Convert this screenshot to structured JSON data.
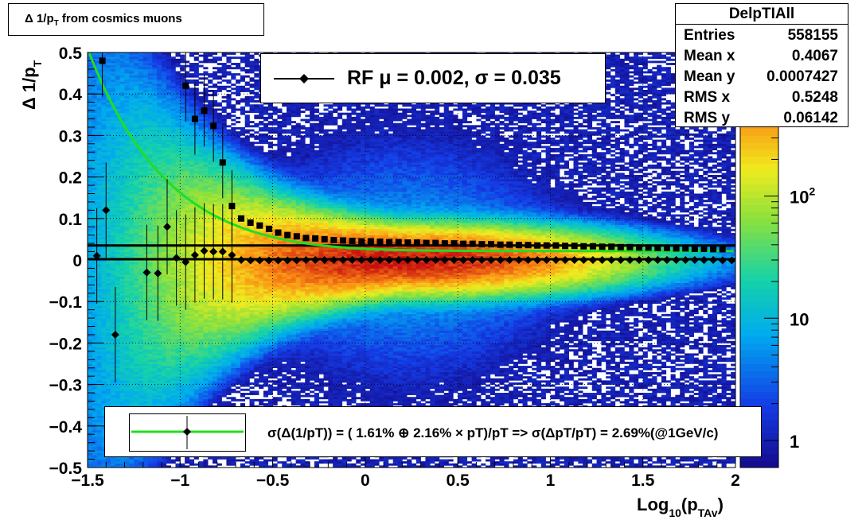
{
  "title": "Δ 1/p",
  "title_sub": "T",
  "title_rest": " from cosmics muons",
  "stats": {
    "name": "DelpTIAll",
    "rows": [
      {
        "label": "Entries",
        "value": "558155"
      },
      {
        "label": "Mean x",
        "value": "0.4067"
      },
      {
        "label": "Mean y",
        "value": "0.0007427"
      },
      {
        "label": "RMS x",
        "value": "0.5248"
      },
      {
        "label": "RMS y",
        "value": "0.06142"
      }
    ]
  },
  "legend_top": "RF μ =  0.002, σ =   0.035",
  "legend_bottom": "σ(Δ(1/pT)) = ( 1.61% ⊕  2.16% × pT)/pT => σ(ΔpT/pT) =  2.69%(@1GeV/c)",
  "colors": {
    "fit_curve": "#22dd22",
    "markers": "#000000",
    "palette_low": "#1a0f90",
    "palette_high": "#c80f0f"
  },
  "chart_data": {
    "type": "heatmap",
    "xlabel": "Log",
    "xlabel_sub": "10",
    "xlabel_rest": "(p",
    "xlabel_sub2": "TAv",
    "xlabel_end": ")",
    "ylabel": "Δ 1/p",
    "ylabel_sub": "T",
    "xlim": [
      -1.5,
      2.0
    ],
    "ylim": [
      -0.5,
      0.5
    ],
    "x_ticks": [
      -1.5,
      -1,
      -0.5,
      0,
      0.5,
      1,
      1.5,
      2
    ],
    "x_tick_labels": [
      "−1.5",
      "−1",
      "−0.5",
      "0",
      "0.5",
      "1",
      "1.5",
      "2"
    ],
    "y_ticks": [
      -0.5,
      -0.4,
      -0.3,
      -0.2,
      -0.1,
      0,
      0.1,
      0.2,
      0.3,
      0.4,
      0.5
    ],
    "y_tick_labels": [
      "−0.5",
      "−0.4",
      "−0.3",
      "−0.2",
      "−0.1",
      "0",
      "0.1",
      "0.2",
      "0.3",
      "0.4",
      "0.5"
    ],
    "z_scale": "log",
    "z_range": [
      0.6,
      1500
    ],
    "z_tick_labels": [
      {
        "z": 1,
        "base": "1",
        "exp": ""
      },
      {
        "z": 10,
        "base": "10",
        "exp": ""
      },
      {
        "z": 100,
        "base": "10",
        "exp": "2"
      }
    ],
    "grid": true,
    "mean_series": {
      "name": "mean",
      "points": [
        [
          -1.45,
          0.01
        ],
        [
          -1.4,
          0.12
        ],
        [
          -1.35,
          -0.18
        ],
        [
          -1.18,
          -0.03
        ],
        [
          -1.12,
          -0.032
        ],
        [
          -1.07,
          0.08
        ],
        [
          -1.02,
          0.005
        ],
        [
          -0.97,
          -0.005
        ],
        [
          -0.92,
          0.012
        ],
        [
          -0.87,
          0.022
        ],
        [
          -0.82,
          0.02
        ],
        [
          -0.77,
          0.02
        ],
        [
          -0.72,
          0.012
        ],
        [
          -0.67,
          0.0
        ],
        [
          -0.62,
          -0.001
        ],
        [
          -0.57,
          -0.001
        ],
        [
          -0.52,
          -0.001
        ],
        [
          -0.47,
          -0.001
        ],
        [
          -0.42,
          -0.001
        ],
        [
          -0.37,
          -0.001
        ],
        [
          -0.32,
          0.0
        ],
        [
          -0.27,
          0.0
        ],
        [
          -0.22,
          0.0
        ],
        [
          -0.17,
          0.0
        ],
        [
          -0.12,
          0.0
        ],
        [
          -0.07,
          0.0
        ],
        [
          -0.02,
          0.0
        ],
        [
          0.03,
          0.0
        ],
        [
          0.08,
          0.0
        ],
        [
          0.13,
          0.0
        ],
        [
          0.18,
          0.0
        ],
        [
          0.23,
          0.0
        ],
        [
          0.28,
          0.0
        ],
        [
          0.33,
          0.0
        ],
        [
          0.38,
          0.0
        ],
        [
          0.43,
          0.0
        ],
        [
          0.48,
          0.0
        ],
        [
          0.53,
          0.0
        ],
        [
          0.58,
          0.0
        ],
        [
          0.63,
          0.0
        ],
        [
          0.68,
          0.0
        ],
        [
          0.73,
          0.0
        ],
        [
          0.78,
          0.0
        ],
        [
          0.83,
          0.0
        ],
        [
          0.88,
          0.0
        ],
        [
          0.93,
          0.0
        ],
        [
          0.98,
          0.0
        ],
        [
          1.03,
          0.0
        ],
        [
          1.08,
          0.0
        ],
        [
          1.13,
          0.0
        ],
        [
          1.18,
          0.0
        ],
        [
          1.23,
          0.0
        ],
        [
          1.28,
          0.0
        ],
        [
          1.33,
          0.0
        ],
        [
          1.38,
          0.0
        ],
        [
          1.43,
          0.0
        ],
        [
          1.48,
          0.0
        ],
        [
          1.53,
          0.0
        ],
        [
          1.58,
          0.0
        ],
        [
          1.63,
          0.0
        ],
        [
          1.68,
          0.0
        ],
        [
          1.73,
          0.0
        ],
        [
          1.78,
          0.0
        ],
        [
          1.83,
          0.0
        ],
        [
          1.88,
          0.0
        ],
        [
          1.93,
          -0.001
        ],
        [
          1.98,
          -0.001
        ]
      ]
    },
    "sigma_series": {
      "name": "sigma",
      "points": [
        [
          -1.42,
          0.48
        ],
        [
          -0.97,
          0.42
        ],
        [
          -0.92,
          0.34
        ],
        [
          -0.87,
          0.36
        ],
        [
          -0.82,
          0.323
        ],
        [
          -0.77,
          0.235
        ],
        [
          -0.72,
          0.13
        ],
        [
          -0.67,
          0.1
        ],
        [
          -0.62,
          0.09
        ],
        [
          -0.57,
          0.083
        ],
        [
          -0.52,
          0.075
        ],
        [
          -0.47,
          0.066
        ],
        [
          -0.42,
          0.06
        ],
        [
          -0.37,
          0.057
        ],
        [
          -0.32,
          0.053
        ],
        [
          -0.27,
          0.052
        ],
        [
          -0.22,
          0.05
        ],
        [
          -0.17,
          0.048
        ],
        [
          -0.12,
          0.047
        ],
        [
          -0.07,
          0.046
        ],
        [
          -0.02,
          0.045
        ],
        [
          0.03,
          0.045
        ],
        [
          0.08,
          0.044
        ],
        [
          0.13,
          0.043
        ],
        [
          0.18,
          0.043
        ],
        [
          0.23,
          0.042
        ],
        [
          0.28,
          0.042
        ],
        [
          0.33,
          0.041
        ],
        [
          0.38,
          0.041
        ],
        [
          0.43,
          0.04
        ],
        [
          0.48,
          0.04
        ],
        [
          0.53,
          0.039
        ],
        [
          0.58,
          0.039
        ],
        [
          0.63,
          0.038
        ],
        [
          0.68,
          0.038
        ],
        [
          0.73,
          0.037
        ],
        [
          0.78,
          0.037
        ],
        [
          0.83,
          0.036
        ],
        [
          0.88,
          0.036
        ],
        [
          0.93,
          0.035
        ],
        [
          0.98,
          0.035
        ],
        [
          1.03,
          0.035
        ],
        [
          1.08,
          0.034
        ],
        [
          1.13,
          0.034
        ],
        [
          1.18,
          0.033
        ],
        [
          1.23,
          0.033
        ],
        [
          1.28,
          0.032
        ],
        [
          1.33,
          0.032
        ],
        [
          1.38,
          0.031
        ],
        [
          1.43,
          0.031
        ],
        [
          1.48,
          0.03
        ],
        [
          1.53,
          0.03
        ],
        [
          1.58,
          0.029
        ],
        [
          1.63,
          0.029
        ],
        [
          1.68,
          0.028
        ],
        [
          1.73,
          0.028
        ],
        [
          1.78,
          0.027
        ],
        [
          1.83,
          0.027
        ],
        [
          1.88,
          0.026
        ],
        [
          1.93,
          0.026
        ]
      ]
    },
    "lines": [
      {
        "name": "mu",
        "y": 0.002
      },
      {
        "name": "sigma",
        "y": 0.035
      }
    ],
    "fit": {
      "a_percent": 1.61,
      "b_percent": 2.16
    }
  }
}
